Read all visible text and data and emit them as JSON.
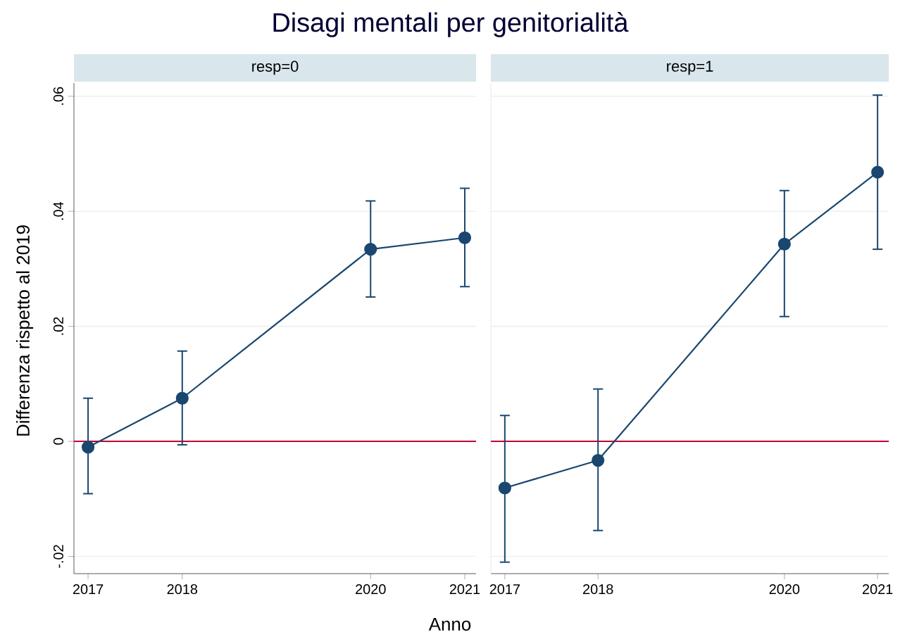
{
  "chart_data": [
    {
      "type": "line",
      "title": "Disagi mentali per genitorialità",
      "subtitle": "resp=0",
      "xlabel": "Anno",
      "ylabel": "Differenza rispetto al 2019",
      "x": [
        2017,
        2018,
        2020,
        2021
      ],
      "series": [
        {
          "color": "#1a476f",
          "values": [
            -0.001,
            0.0075,
            0.0334,
            0.0354
          ],
          "errors": [
            [
              -0.0091,
              0.0075
            ],
            [
              -0.0006,
              0.0157
            ],
            [
              0.0251,
              0.0418
            ],
            [
              0.0269,
              0.044
            ]
          ]
        }
      ],
      "xlim": [
        2016.85,
        2021.12
      ],
      "xticks": [
        2017,
        2018,
        2020,
        2021
      ],
      "ylim": [
        -0.023,
        0.0623
      ],
      "yticks": [
        {
          "value": -0.02,
          "label": "-.02"
        },
        0,
        {
          "value": 0.02,
          "label": ".02"
        },
        {
          "value": 0.04,
          "label": ".04"
        },
        {
          "value": 0.06,
          "label": ".06"
        }
      ],
      "grid": "y",
      "marker": "circle",
      "line_style": "solid",
      "ref_lines": [
        {
          "axis": "y",
          "value": 0,
          "color": "#c10534"
        }
      ]
    },
    {
      "type": "line",
      "subtitle": "resp=1",
      "x": [
        2017,
        2018,
        2020,
        2021
      ],
      "series": [
        {
          "color": "#1a476f",
          "values": [
            -0.0081,
            -0.0033,
            0.0343,
            0.0468
          ],
          "errors": [
            [
              -0.021,
              0.0045
            ],
            [
              -0.0155,
              0.0091
            ],
            [
              0.0217,
              0.0436
            ],
            [
              0.0334,
              0.0602
            ]
          ]
        }
      ],
      "xlim": [
        2016.85,
        2021.12
      ],
      "xticks": [
        2017,
        2018,
        2020,
        2021
      ],
      "ylim": [
        -0.023,
        0.0623
      ],
      "yticks": [
        -0.02,
        0,
        0.02,
        0.04,
        0.06
      ],
      "grid": "y",
      "marker": "circle",
      "line_style": "solid",
      "tick_labels": "x",
      "ref_lines": [
        {
          "axis": "y",
          "value": 0,
          "color": "#c10534"
        }
      ]
    }
  ]
}
